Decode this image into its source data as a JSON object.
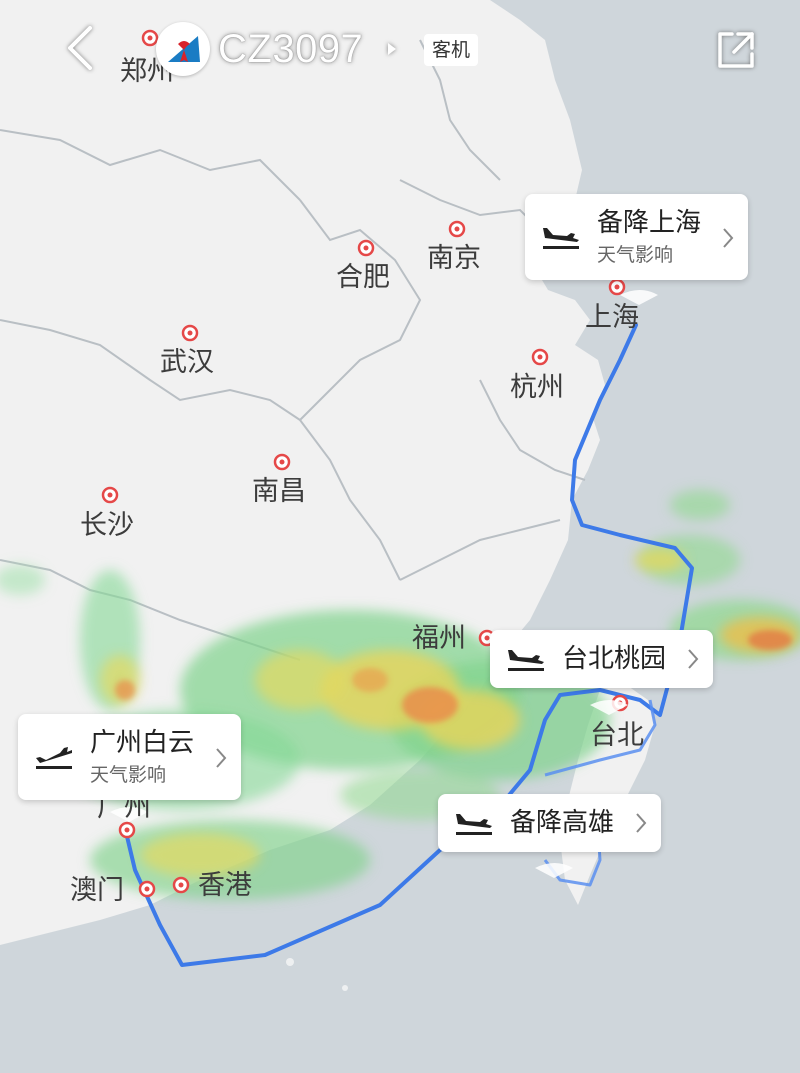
{
  "header": {
    "flight_number": "CZ3097",
    "aircraft_type": "客机",
    "colors": {
      "logo_blue": "#1a7cc4",
      "logo_red": "#d8232a"
    }
  },
  "cities": [
    {
      "name": "郑州"
    },
    {
      "name": "合肥"
    },
    {
      "name": "南京"
    },
    {
      "name": "上海"
    },
    {
      "name": "武汉"
    },
    {
      "name": "杭州"
    },
    {
      "name": "南昌"
    },
    {
      "name": "长沙"
    },
    {
      "name": "福州"
    },
    {
      "name": "台北"
    },
    {
      "name": "广州"
    },
    {
      "name": "澳门"
    },
    {
      "name": "香港"
    }
  ],
  "airport_cards": {
    "shanghai": {
      "title": "备降上海",
      "subtitle": "天气影响"
    },
    "taipei": {
      "title": "台北桃园",
      "subtitle": ""
    },
    "guangzhou": {
      "title": "广州白云",
      "subtitle": "天气影响"
    },
    "kaohsiung": {
      "title": "备降高雄",
      "subtitle": ""
    }
  },
  "icons": [
    "back-arrow-icon",
    "china-southern-logo-icon",
    "share-icon",
    "landing-plane-icon",
    "chevron-right-icon"
  ],
  "colors": {
    "route": "#3d7ae8",
    "land": "#f0f0f0",
    "sea": "#cfd6db",
    "border": "#b9bfc4"
  }
}
